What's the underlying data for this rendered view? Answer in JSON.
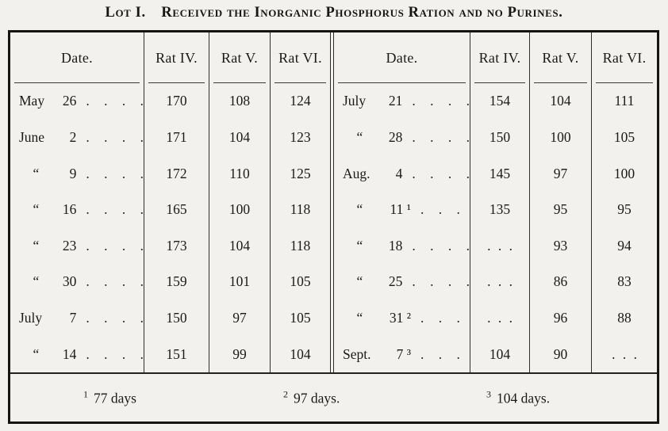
{
  "title": "Lot I.  Received the Inorganic Phosphorus Ration and no Purines.",
  "tables": [
    {
      "headers": [
        "Date.",
        "Rat IV.",
        "Rat V.",
        "Rat VI."
      ],
      "rows": [
        {
          "month": "May",
          "day": "26",
          "leader": ". . . .",
          "rat4": "170",
          "rat5": "108",
          "rat6": "124"
        },
        {
          "month": "June",
          "day": "2",
          "leader": ". . . .",
          "rat4": "171",
          "rat5": "104",
          "rat6": "123"
        },
        {
          "month": "  “",
          "day": "9",
          "leader": ". . . .",
          "rat4": "172",
          "rat5": "110",
          "rat6": "125"
        },
        {
          "month": "  “",
          "day": "16",
          "leader": ". . . .",
          "rat4": "165",
          "rat5": "100",
          "rat6": "118"
        },
        {
          "month": "  “",
          "day": "23",
          "leader": ". . . .",
          "rat4": "173",
          "rat5": "104",
          "rat6": "118"
        },
        {
          "month": "  “",
          "day": "30",
          "leader": ". . . .",
          "rat4": "159",
          "rat5": "101",
          "rat6": "105"
        },
        {
          "month": "July",
          "day": "7",
          "leader": ". . . .",
          "rat4": "150",
          "rat5": "97",
          "rat6": "105"
        },
        {
          "month": "  “",
          "day": "14",
          "leader": ". . . .",
          "rat4": "151",
          "rat5": "99",
          "rat6": "104"
        }
      ]
    },
    {
      "headers": [
        "Date.",
        "Rat IV.",
        "Rat V.",
        "Rat VI."
      ],
      "rows": [
        {
          "month": "July",
          "day": "21",
          "leader": ". . . .",
          "rat4": "154",
          "rat5": "104",
          "rat6": "111"
        },
        {
          "month": "  “",
          "day": "28",
          "leader": ". . . .",
          "rat4": "150",
          "rat5": "100",
          "rat6": "105"
        },
        {
          "month": "Aug.",
          "day": "4",
          "leader": ". . . .",
          "rat4": "145",
          "rat5": "97",
          "rat6": "100"
        },
        {
          "month": "  “",
          "day": "11 ¹",
          "leader": ". . .",
          "rat4": "135",
          "rat5": "95",
          "rat6": "95"
        },
        {
          "month": "  “",
          "day": "18",
          "leader": ". . . .",
          "rat4": ". . .",
          "rat5": "93",
          "rat6": "94"
        },
        {
          "month": "  “",
          "day": "25",
          "leader": ". . . .",
          "rat4": ". . .",
          "rat5": "86",
          "rat6": "83"
        },
        {
          "month": "  “",
          "day": "31 ²",
          "leader": ". . .",
          "rat4": ". . .",
          "rat5": "96",
          "rat6": "88"
        },
        {
          "month": "Sept.",
          "day": "7 ³",
          "leader": ". . .",
          "rat4": "104",
          "rat5": "90",
          "rat6": ". . ."
        }
      ]
    }
  ],
  "footnotes": [
    {
      "mark": "1",
      "text": "77 days"
    },
    {
      "mark": "2",
      "text": "97 days."
    },
    {
      "mark": "3",
      "text": "104 days."
    }
  ],
  "colors": {
    "ink": "#1a1a1a",
    "paper": "#f2f1ed",
    "rule": "#2f2f2f"
  }
}
